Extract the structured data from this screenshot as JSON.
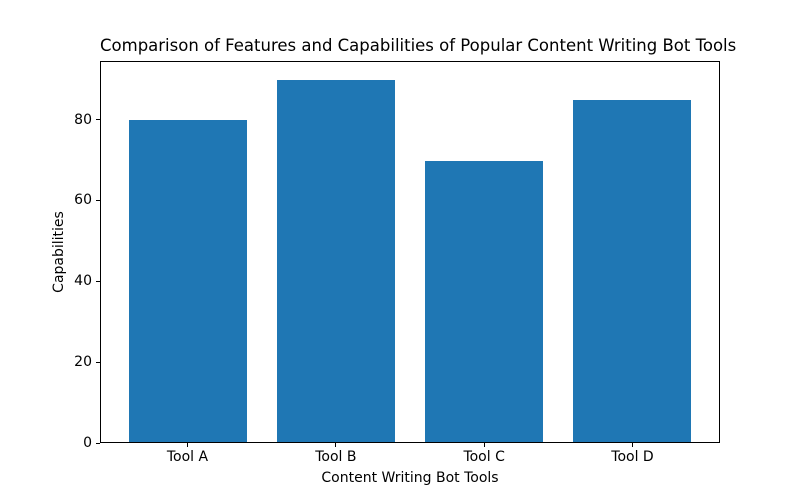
{
  "chart_data": {
    "type": "bar",
    "title": "Comparison of Features and Capabilities of Popular Content Writing Bot Tools",
    "xlabel": "Content Writing Bot Tools",
    "ylabel": "Capabilities",
    "categories": [
      "Tool A",
      "Tool B",
      "Tool C",
      "Tool D"
    ],
    "values": [
      80,
      90,
      70,
      85
    ],
    "yticks": [
      0,
      20,
      40,
      60,
      80
    ],
    "ylim": [
      0,
      94.5
    ],
    "xlim": [
      -0.59,
      3.59
    ],
    "bar_width": 0.8,
    "bar_color": "#1f77b4",
    "grid": false,
    "legend": null
  }
}
